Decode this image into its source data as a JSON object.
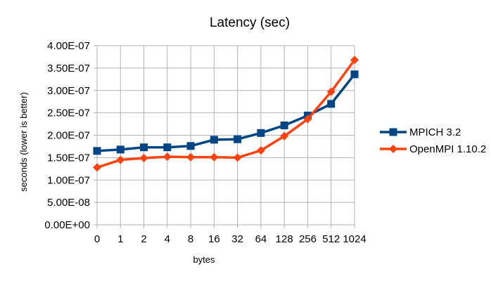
{
  "chart_data": {
    "type": "line",
    "title": "Latency (sec)",
    "xlabel": "bytes",
    "ylabel": "seconds (lower is better)",
    "categories": [
      "0",
      "1",
      "2",
      "4",
      "8",
      "16",
      "32",
      "64",
      "128",
      "256",
      "512",
      "1024"
    ],
    "ylim": [
      0,
      4e-07
    ],
    "yticks": [
      0,
      5e-08,
      1e-07,
      1.5e-07,
      2e-07,
      2.5e-07,
      3e-07,
      3.5e-07,
      4e-07
    ],
    "ytick_labels": [
      "0.00E+00",
      "5.00E-08",
      "1.00E-07",
      "1.50E-07",
      "2.00E-07",
      "2.50E-07",
      "3.00E-07",
      "3.50E-07",
      "4.00E-07"
    ],
    "grid": true,
    "legend_position": "right",
    "series": [
      {
        "name": "MPICH 3.2",
        "color": "#004586",
        "marker": "square",
        "values": [
          1.65e-07,
          1.68e-07,
          1.73e-07,
          1.73e-07,
          1.76e-07,
          1.9e-07,
          1.91e-07,
          2.05e-07,
          2.22e-07,
          2.44e-07,
          2.7e-07,
          3.36e-07
        ]
      },
      {
        "name": "OpenMPI 1.10.2",
        "color": "#ff420e",
        "marker": "diamond",
        "values": [
          1.28e-07,
          1.45e-07,
          1.49e-07,
          1.52e-07,
          1.51e-07,
          1.51e-07,
          1.5e-07,
          1.66e-07,
          1.98e-07,
          2.36e-07,
          2.97e-07,
          3.68e-07
        ]
      }
    ]
  }
}
